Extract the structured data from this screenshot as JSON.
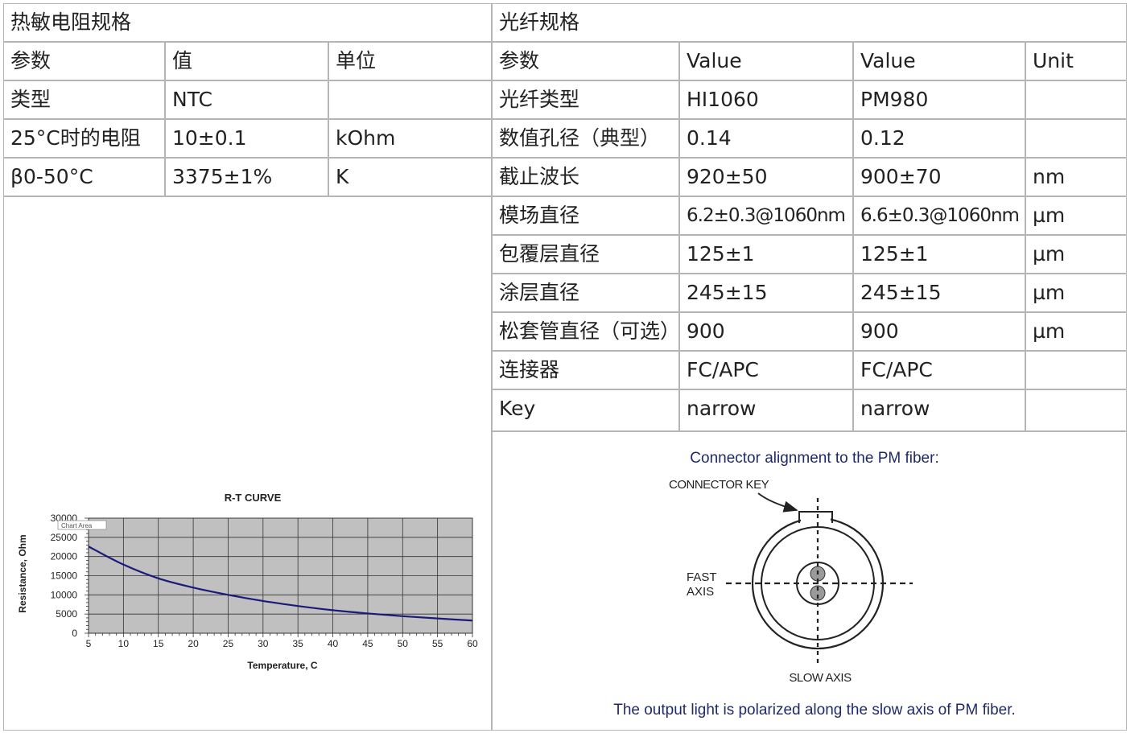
{
  "thermistor": {
    "title": "热敏电阻规格",
    "headers": [
      "参数",
      "值",
      "单位"
    ],
    "rows": [
      [
        "类型",
        "NTC",
        ""
      ],
      [
        "25°C时的电阻",
        "10±0.1",
        "kOhm"
      ],
      [
        "β0-50°C",
        "3375±1%",
        "K"
      ]
    ]
  },
  "fiber": {
    "title": "光纤规格",
    "headers": [
      "参数",
      "Value",
      "Value",
      "Unit"
    ],
    "rows": [
      [
        "光纤类型",
        "HI1060",
        "PM980",
        ""
      ],
      [
        "数值孔径（典型）",
        "0.14",
        "0.12",
        ""
      ],
      [
        "截止波长",
        "920±50",
        "900±70",
        "nm"
      ],
      [
        " 模场直径",
        "6.2±0.3@1060nm",
        "6.6±0.3@1060nm",
        "µm"
      ],
      [
        "包覆层直径",
        "125±1",
        "125±1",
        "µm"
      ],
      [
        "涂层直径",
        "245±15",
        "245±15",
        "µm"
      ],
      [
        "松套管直径（可选）",
        "900",
        "900",
        "µm"
      ],
      [
        "连接器",
        "FC/APC",
        "FC/APC",
        ""
      ],
      [
        "Key",
        "narrow",
        "narrow",
        ""
      ]
    ]
  },
  "chart_data": {
    "type": "line",
    "title": "R-T CURVE",
    "xlabel": "Temperature, C",
    "ylabel": "Resistance, Ohm",
    "annotation": "Chart Area",
    "xlim": [
      5,
      60
    ],
    "ylim": [
      0,
      30000
    ],
    "xticks": [
      5,
      10,
      15,
      20,
      25,
      30,
      35,
      40,
      45,
      50,
      55,
      60
    ],
    "yticks": [
      0,
      5000,
      10000,
      15000,
      20000,
      25000,
      30000
    ],
    "x": [
      5,
      10,
      15,
      20,
      25,
      30,
      35,
      40,
      45,
      50,
      55,
      60
    ],
    "y": [
      22600,
      17900,
      14300,
      11900,
      10000,
      8400,
      7100,
      6000,
      5150,
      4450,
      3850,
      3300
    ],
    "line_color": "#1a1a7a",
    "plot_bg": "#c0c0c0"
  },
  "diagram": {
    "title": "Connector alignment to the PM fiber:",
    "connector_key": "CONNECTOR KEY",
    "fast_axis_line1": "FAST",
    "fast_axis_line2": "AXIS",
    "slow_axis": "SLOW AXIS",
    "caption": "The output light is polarized along the slow axis of PM fiber.",
    "text_color": "#1f2a6b"
  }
}
